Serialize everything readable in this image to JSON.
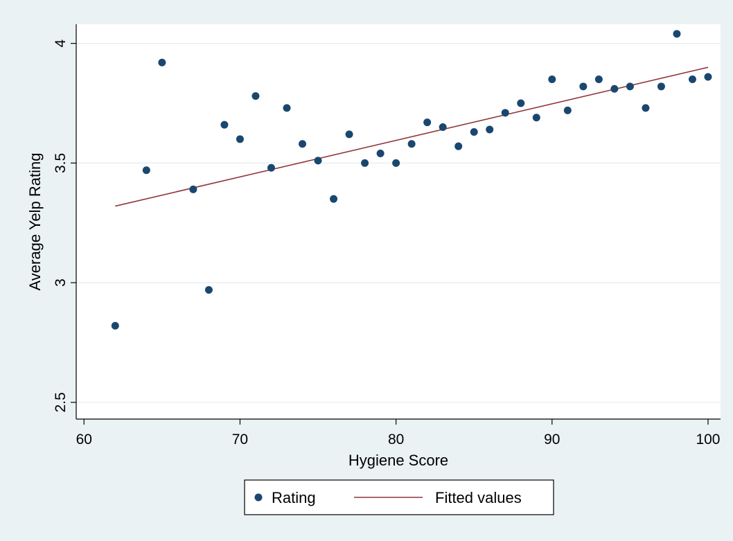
{
  "chart_data": {
    "type": "scatter",
    "title": "",
    "xlabel": "Hygiene Score",
    "ylabel": "Average Yelp Rating",
    "xlim": [
      59.5,
      100.8
    ],
    "ylim": [
      2.43,
      4.08
    ],
    "xticks": [
      60,
      70,
      80,
      90,
      100
    ],
    "yticks": [
      2.5,
      3,
      3.5,
      4
    ],
    "xtick_labels": [
      "60",
      "70",
      "80",
      "90",
      "100"
    ],
    "ytick_labels": [
      "2.5",
      "3",
      "3.5",
      "4"
    ],
    "grid": "horizontal",
    "legend": {
      "position": "bottom",
      "entries": [
        "Rating",
        "Fitted values"
      ]
    },
    "series": [
      {
        "name": "Rating",
        "kind": "scatter",
        "color": "#1a476f",
        "x": [
          62,
          64,
          65,
          67,
          68,
          69,
          70,
          71,
          72,
          73,
          74,
          75,
          76,
          77,
          78,
          79,
          80,
          81,
          82,
          83,
          84,
          85,
          86,
          87,
          88,
          89,
          90,
          91,
          92,
          93,
          94,
          95,
          96,
          97,
          98,
          99,
          100
        ],
        "y": [
          2.82,
          3.47,
          3.92,
          3.39,
          2.97,
          3.66,
          3.6,
          3.78,
          3.48,
          3.73,
          3.58,
          3.51,
          3.35,
          3.62,
          3.5,
          3.54,
          3.5,
          3.58,
          3.67,
          3.65,
          3.57,
          3.63,
          3.64,
          3.71,
          3.75,
          3.69,
          3.85,
          3.72,
          3.82,
          3.85,
          3.81,
          3.82,
          3.73,
          3.82,
          4.04,
          3.85,
          3.86
        ]
      },
      {
        "name": "Fitted values",
        "kind": "line",
        "color": "#90353b",
        "x": [
          62,
          100
        ],
        "y": [
          3.32,
          3.9
        ]
      }
    ]
  }
}
